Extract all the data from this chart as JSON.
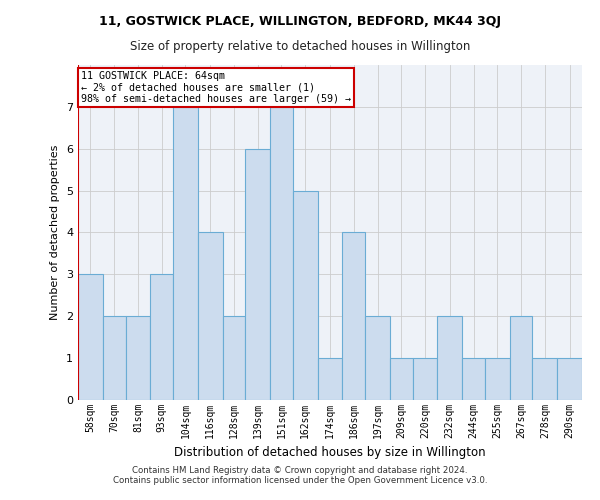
{
  "title1": "11, GOSTWICK PLACE, WILLINGTON, BEDFORD, MK44 3QJ",
  "title2": "Size of property relative to detached houses in Willington",
  "xlabel": "Distribution of detached houses by size in Willington",
  "ylabel": "Number of detached properties",
  "categories": [
    "58sqm",
    "70sqm",
    "81sqm",
    "93sqm",
    "104sqm",
    "116sqm",
    "128sqm",
    "139sqm",
    "151sqm",
    "162sqm",
    "174sqm",
    "186sqm",
    "197sqm",
    "209sqm",
    "220sqm",
    "232sqm",
    "244sqm",
    "255sqm",
    "267sqm",
    "278sqm",
    "290sqm"
  ],
  "bin_starts": [
    58,
    70,
    81,
    93,
    104,
    116,
    128,
    139,
    151,
    162,
    174,
    186,
    197,
    209,
    220,
    232,
    244,
    255,
    267,
    278,
    290
  ],
  "values": [
    3,
    2,
    2,
    3,
    7,
    4,
    2,
    6,
    7,
    5,
    1,
    4,
    2,
    1,
    1,
    2,
    1,
    1,
    2,
    1,
    1
  ],
  "bar_color": "#ccdcee",
  "bar_edge_color": "#6aacd4",
  "grid_color": "#cccccc",
  "red_color": "#cc0000",
  "annotation_text": "11 GOSTWICK PLACE: 64sqm\n← 2% of detached houses are smaller (1)\n98% of semi-detached houses are larger (59) →",
  "footer1": "Contains HM Land Registry data © Crown copyright and database right 2024.",
  "footer2": "Contains public sector information licensed under the Open Government Licence v3.0.",
  "ylim": [
    0,
    8
  ],
  "yticks": [
    0,
    1,
    2,
    3,
    4,
    5,
    6,
    7
  ],
  "property_line_x": 58,
  "background_color": "#eef2f8"
}
